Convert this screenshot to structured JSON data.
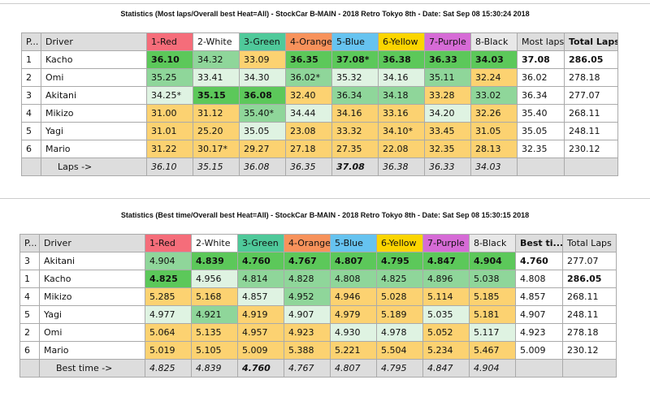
{
  "colors": {
    "1-Red": "#f56d7a",
    "2-White": "#ffffff",
    "3-Green": "#4fc99a",
    "4-Orange": "#f7925b",
    "5-Blue": "#66c3f0",
    "6-Yellow": "#fbd500",
    "7-Purple": "#d66bd6",
    "8-Black": "#e8e8e8"
  },
  "table1": {
    "title": "Statistics (Most laps/Overall best Heat=All) - StockCar B-MAIN - 2018 Retro Tokyo 8th - Date: Sat Sep 08 15:30:24 2018",
    "headers": [
      "P...",
      "Driver",
      "1-Red",
      "2-White",
      "3-Green",
      "4-Orange",
      "5-Blue",
      "6-Yellow",
      "7-Purple",
      "8-Black",
      "Most laps",
      "Total Laps"
    ],
    "rows": [
      {
        "pos": "1",
        "driver": "Kacho",
        "cells": [
          "36.10",
          "34.32",
          "33.09",
          "36.35",
          "37.08*",
          "36.38",
          "36.33",
          "34.03"
        ],
        "shade": [
          "D",
          "M",
          "Y",
          "D",
          "D",
          "D",
          "D",
          "D"
        ],
        "best": "37.08",
        "total": "286.05",
        "bold": true
      },
      {
        "pos": "2",
        "driver": "Omi",
        "cells": [
          "35.25",
          "33.41",
          "34.30",
          "36.02*",
          "35.32",
          "34.16",
          "35.11",
          "32.24"
        ],
        "shade": [
          "M",
          "L",
          "L",
          "M",
          "L",
          "L",
          "M",
          "Y"
        ],
        "best": "36.02",
        "total": "278.18"
      },
      {
        "pos": "3",
        "driver": "Akitani",
        "cells": [
          "34.25*",
          "35.15",
          "36.08",
          "32.40",
          "36.34",
          "34.18",
          "33.28",
          "33.02"
        ],
        "shade": [
          "L",
          "D",
          "D",
          "Y",
          "M",
          "M",
          "Y",
          "M"
        ],
        "best": "36.34",
        "total": "277.07"
      },
      {
        "pos": "4",
        "driver": "Mikizo",
        "cells": [
          "31.00",
          "31.12",
          "35.40*",
          "34.44",
          "34.16",
          "33.16",
          "34.20",
          "32.26"
        ],
        "shade": [
          "Y",
          "Y",
          "M",
          "L",
          "Y",
          "Y",
          "L",
          "Y"
        ],
        "best": "35.40",
        "total": "268.11"
      },
      {
        "pos": "5",
        "driver": "Yagi",
        "cells": [
          "31.01",
          "25.20",
          "35.05",
          "23.08",
          "33.32",
          "34.10*",
          "33.45",
          "31.05"
        ],
        "shade": [
          "Y",
          "Y",
          "L",
          "Y",
          "Y",
          "Y",
          "Y",
          "Y"
        ],
        "best": "35.05",
        "total": "248.11"
      },
      {
        "pos": "6",
        "driver": "Mario",
        "cells": [
          "31.22",
          "30.17*",
          "29.27",
          "27.18",
          "27.35",
          "22.08",
          "32.35",
          "28.13"
        ],
        "shade": [
          "Y",
          "Y",
          "Y",
          "Y",
          "Y",
          "Y",
          "Y",
          "Y"
        ],
        "best": "32.35",
        "total": "230.12"
      }
    ],
    "footer": {
      "label": "Laps ->",
      "values": [
        "36.10",
        "35.15",
        "36.08",
        "36.35",
        "37.08",
        "36.38",
        "36.33",
        "34.03"
      ],
      "boldIndex": 4
    }
  },
  "table2": {
    "title": "Statistics (Best time/Overall best Heat=All) - StockCar B-MAIN - 2018 Retro Tokyo 8th - Date: Sat Sep 08 15:30:15 2018",
    "headers": [
      "P...",
      "Driver",
      "1-Red",
      "2-White",
      "3-Green",
      "4-Orange",
      "5-Blue",
      "6-Yellow",
      "7-Purple",
      "8-Black",
      "Best ti...",
      "Total Laps"
    ],
    "rows": [
      {
        "pos": "3",
        "driver": "Akitani",
        "cells": [
          "4.904",
          "4.839",
          "4.760",
          "4.767",
          "4.807",
          "4.795",
          "4.847",
          "4.904"
        ],
        "shade": [
          "M",
          "D",
          "D",
          "D",
          "D",
          "D",
          "D",
          "D"
        ],
        "best": "4.760",
        "total": "277.07",
        "boldBest": true
      },
      {
        "pos": "1",
        "driver": "Kacho",
        "cells": [
          "4.825",
          "4.956",
          "4.814",
          "4.828",
          "4.808",
          "4.825",
          "4.896",
          "5.038"
        ],
        "shade": [
          "D",
          "L",
          "M",
          "M",
          "M",
          "M",
          "M",
          "M"
        ],
        "best": "4.808",
        "total": "286.05",
        "boldTotal": true
      },
      {
        "pos": "4",
        "driver": "Mikizo",
        "cells": [
          "5.285",
          "5.168",
          "4.857",
          "4.952",
          "4.946",
          "5.028",
          "5.114",
          "5.185"
        ],
        "shade": [
          "Y",
          "Y",
          "L",
          "M",
          "Y",
          "Y",
          "Y",
          "Y"
        ],
        "best": "4.857",
        "total": "268.11"
      },
      {
        "pos": "5",
        "driver": "Yagi",
        "cells": [
          "4.977",
          "4.921",
          "4.919",
          "4.907",
          "4.979",
          "5.189",
          "5.035",
          "5.181"
        ],
        "shade": [
          "L",
          "M",
          "Y",
          "L",
          "Y",
          "Y",
          "L",
          "Y"
        ],
        "best": "4.907",
        "total": "248.11"
      },
      {
        "pos": "2",
        "driver": "Omi",
        "cells": [
          "5.064",
          "5.135",
          "4.957",
          "4.923",
          "4.930",
          "4.978",
          "5.052",
          "5.117"
        ],
        "shade": [
          "Y",
          "Y",
          "Y",
          "Y",
          "L",
          "L",
          "Y",
          "L"
        ],
        "best": "4.923",
        "total": "278.18"
      },
      {
        "pos": "6",
        "driver": "Mario",
        "cells": [
          "5.019",
          "5.105",
          "5.009",
          "5.388",
          "5.221",
          "5.504",
          "5.234",
          "5.467"
        ],
        "shade": [
          "Y",
          "Y",
          "Y",
          "Y",
          "Y",
          "Y",
          "Y",
          "Y"
        ],
        "best": "5.009",
        "total": "230.12"
      }
    ],
    "footer": {
      "label": "Best time ->",
      "values": [
        "4.825",
        "4.839",
        "4.760",
        "4.767",
        "4.807",
        "4.795",
        "4.847",
        "4.904"
      ],
      "boldIndex": 2
    }
  }
}
